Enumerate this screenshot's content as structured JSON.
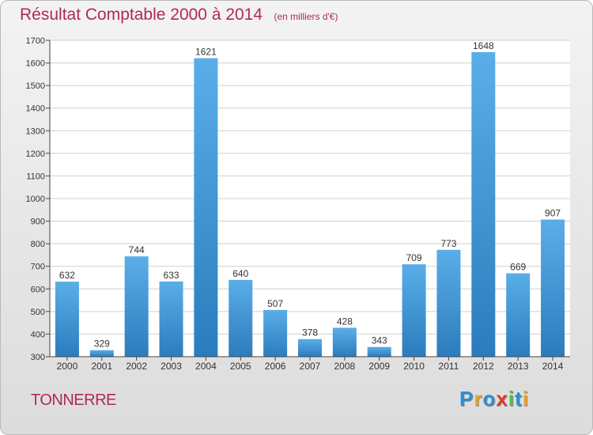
{
  "title": "Résultat Comptable 2000 à 2014",
  "unit": "(en milliers d'€)",
  "city": "TONNERRE",
  "logo": {
    "text": "Proxiti",
    "letters": [
      {
        "ch": "P",
        "color": "#2a8fd6"
      },
      {
        "ch": "r",
        "color": "#f0a21e"
      },
      {
        "ch": "o",
        "color": "#2a8fd6"
      },
      {
        "ch": "x",
        "color": "#e03a2c"
      },
      {
        "ch": "i",
        "color": "#58b848"
      },
      {
        "ch": "t",
        "color": "#2a8fd6"
      },
      {
        "ch": "i",
        "color": "#f0a21e"
      }
    ]
  },
  "colors": {
    "bar_top": "#5aaee8",
    "bar_bottom": "#2b7cbd",
    "grid": "#cfcfcf",
    "title": "#b02a52"
  },
  "chart_data": {
    "type": "bar",
    "categories": [
      "2000",
      "2001",
      "2002",
      "2003",
      "2004",
      "2005",
      "2006",
      "2007",
      "2008",
      "2009",
      "2010",
      "2011",
      "2012",
      "2013",
      "2014"
    ],
    "values": [
      632,
      329,
      744,
      633,
      1621,
      640,
      507,
      378,
      428,
      343,
      709,
      773,
      1648,
      669,
      907
    ],
    "ylim": [
      300,
      1700
    ],
    "yticks": [
      300,
      400,
      500,
      600,
      700,
      800,
      900,
      1000,
      1100,
      1200,
      1300,
      1400,
      1500,
      1600,
      1700
    ],
    "title": "Résultat Comptable 2000 à 2014",
    "xlabel": "",
    "ylabel": "",
    "grid": true
  }
}
